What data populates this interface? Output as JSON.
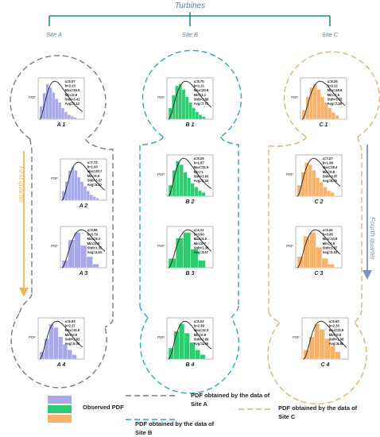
{
  "header": {
    "title": "Turbines",
    "sites": [
      "Site A",
      "Site B",
      "Site C"
    ]
  },
  "side_labels": {
    "left": "First quarter",
    "right": "Fourth quarter"
  },
  "colors": {
    "site_a": "#a9a9e8",
    "site_b": "#2ecc71",
    "site_c": "#f5b36b",
    "title_blue": "#5b7fa8",
    "tree_teal": "#1e8c8c",
    "left_arrow": "#e8b85a",
    "right_arrow": "#7f94b5",
    "frame_a": "#7a7a7a",
    "frame_b": "#2aa8b8",
    "frame_c": "#e0b070"
  },
  "panels": [
    {
      "site": "A",
      "label": "A 1",
      "stats": [
        "a=6.07",
        "b=2.23",
        "Max=16.5",
        "Min=0.9",
        "Stdt=3.41",
        "Avg=7.13"
      ],
      "bars": [
        0.35,
        0.7,
        0.95,
        0.85,
        0.72,
        0.55,
        0.45,
        0.3,
        0.2,
        0.12,
        0.08,
        0.05
      ],
      "mode": 0.35
    },
    {
      "site": "A",
      "label": "A 2",
      "stats": [
        "a=7.72",
        "b=1.93",
        "Max=20.7",
        "Min=0.9",
        "Stdt=3.57",
        "Avg=6.82"
      ],
      "bars": [
        0.25,
        0.5,
        0.8,
        0.9,
        0.8,
        0.62,
        0.5,
        0.38,
        0.25,
        0.15,
        0.1,
        0.06
      ],
      "mode": 0.38
    },
    {
      "site": "A",
      "label": "A 3",
      "stats": [
        "a=3.96",
        "b=3.79",
        "Max=8.3",
        "Min=0.8",
        "Stdt=1.35",
        "Avg=3.53"
      ],
      "bars": [
        0.2,
        0.75,
        0.95,
        0.6,
        0.3,
        0.1
      ],
      "mode": 0.45
    },
    {
      "site": "A",
      "label": "A 4",
      "stats": [
        "a=6.93",
        "b=2.37",
        "Max=11.8",
        "Min=0.9",
        "Stdt=2.83",
        "Avg=5.08"
      ],
      "bars": [
        0.2,
        0.55,
        0.95,
        0.85,
        0.6,
        0.4,
        0.25,
        0.12
      ],
      "mode": 0.4
    },
    {
      "site": "B",
      "label": "B 1",
      "stats": [
        "a=8.75",
        "b=2.21",
        "Max=20.8",
        "Min=1.1",
        "Stdt=3.88",
        "Avg=7.73"
      ],
      "bars": [
        0.3,
        0.65,
        0.9,
        0.95,
        0.8,
        0.6,
        0.45,
        0.3,
        0.2,
        0.12,
        0.07
      ],
      "mode": 0.4
    },
    {
      "site": "B",
      "label": "B 2",
      "stats": [
        "a=6.29",
        "b=1.87",
        "Max=21.5",
        "Min=1",
        "Stdt=3.63",
        "Avg=5.33"
      ],
      "bars": [
        0.3,
        0.7,
        0.95,
        0.85,
        0.65,
        0.5,
        0.35,
        0.25,
        0.15,
        0.1
      ],
      "mode": 0.35
    },
    {
      "site": "B",
      "label": "B 3",
      "stats": [
        "a=4.11",
        "b=3.90",
        "Max=6.5",
        "Min=0.7",
        "Stdt=1.39",
        "Avg=3.67"
      ],
      "bars": [
        0.25,
        0.8,
        0.95,
        0.5,
        0.2
      ],
      "mode": 0.45
    },
    {
      "site": "B",
      "label": "B 4",
      "stats": [
        "a=5.02",
        "b=2.39",
        "Max=12.3",
        "Min=0.9",
        "Stdt=2.09",
        "Avg=4.45"
      ],
      "bars": [
        0.3,
        0.75,
        0.95,
        0.7,
        0.45,
        0.25,
        0.12
      ],
      "mode": 0.38
    },
    {
      "site": "C",
      "label": "C 1",
      "stats": [
        "a=8.24",
        "b=2.22",
        "Max=18.6",
        "Min=1.5",
        "Stdt=3.55",
        "Avg=7.28"
      ],
      "bars": [
        0.25,
        0.6,
        0.85,
        0.95,
        0.8,
        0.6,
        0.45,
        0.3,
        0.18,
        0.1
      ],
      "mode": 0.42
    },
    {
      "site": "C",
      "label": "C 2",
      "stats": [
        "a=7.27",
        "b=1.98",
        "Max=18.4",
        "Min=0.8",
        "Stdt=3.37",
        "Avg=6.45"
      ],
      "bars": [
        0.3,
        0.65,
        0.9,
        0.85,
        0.7,
        0.5,
        0.38,
        0.25,
        0.15,
        0.1
      ],
      "mode": 0.38
    },
    {
      "site": "C",
      "label": "C 3",
      "stats": [
        "a=3.34",
        "b=3.95",
        "Max=10.8",
        "Min=0.9",
        "Stdt=1.37",
        "Avg=3.43"
      ],
      "bars": [
        0.3,
        0.85,
        0.95,
        0.55,
        0.25,
        0.1
      ],
      "mode": 0.42
    },
    {
      "site": "C",
      "label": "C 4",
      "stats": [
        "a=6.62",
        "b=2.30",
        "Max=11.8",
        "Min=0.9",
        "Stdt=1.08",
        "Avg=5.86"
      ],
      "bars": [
        0.25,
        0.6,
        0.95,
        0.8,
        0.55,
        0.35,
        0.2
      ],
      "mode": 0.4
    }
  ],
  "axis_label": "PDF",
  "legend": {
    "observed": "Observed PDF",
    "site_a": "PDF obtained by the data of Site A",
    "site_b": "PDF obtained by the data of Site B",
    "site_c": "PDF obtained by the data of Site C"
  }
}
